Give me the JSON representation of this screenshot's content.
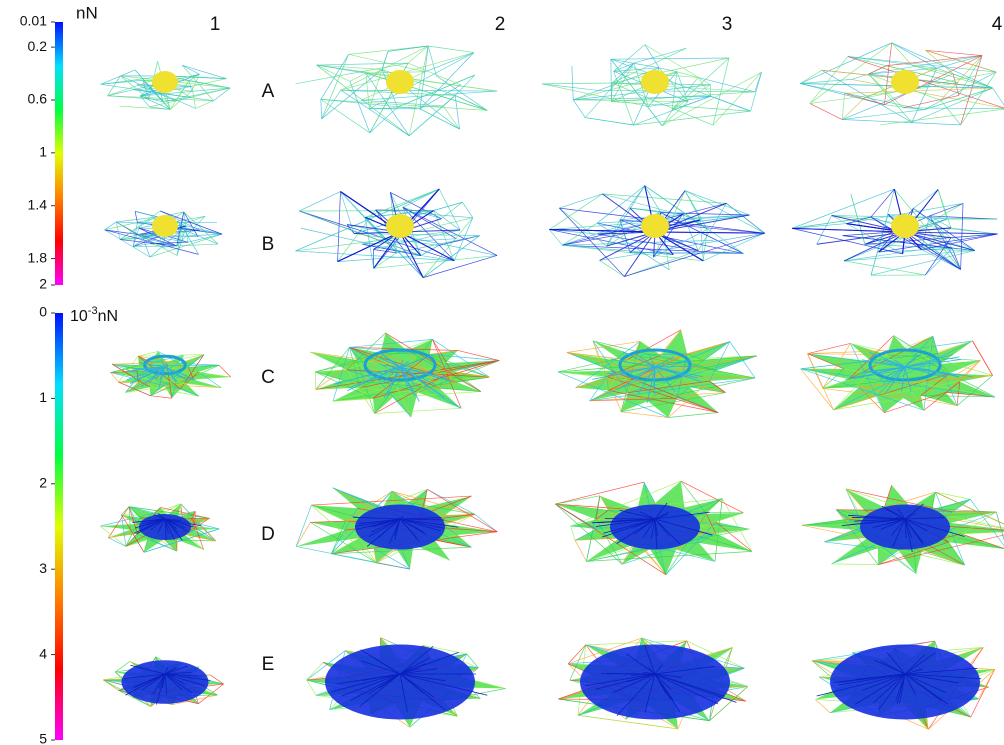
{
  "colorbars": [
    {
      "unit": "nN",
      "range": [
        0.01,
        2
      ],
      "ticks": [
        0.01,
        0.2,
        0.6,
        1,
        1.4,
        1.8,
        2
      ],
      "colors": [
        "#0010ff",
        "#00e0ff",
        "#00ff40",
        "#e0ff00",
        "#ff8000",
        "#ff0000",
        "#ff00ff"
      ]
    },
    {
      "unit": {
        "base": "10",
        "exponent": "-3",
        "suffix": "nN"
      },
      "range": [
        0,
        5
      ],
      "ticks": [
        0,
        1,
        2,
        3,
        4,
        5
      ],
      "colors": [
        "#0010ff",
        "#00e0ff",
        "#00ff40",
        "#e0ff00",
        "#ff8000",
        "#ff0000",
        "#ff00ff"
      ]
    }
  ],
  "columns": [
    "1",
    "2",
    "3",
    "4"
  ],
  "rows": [
    "A",
    "B",
    "C",
    "D",
    "E"
  ]
}
